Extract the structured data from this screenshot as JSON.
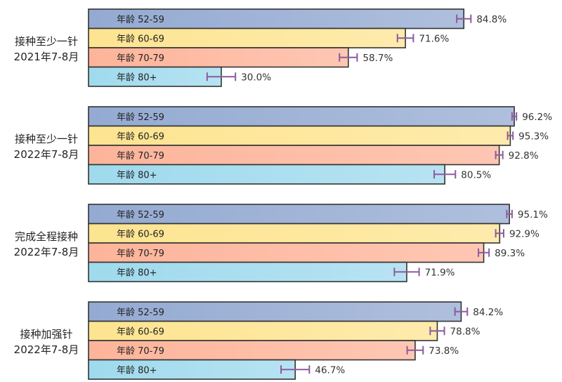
{
  "colors": {
    "series": [
      "#94aad2",
      "#fde490",
      "#fdb49a",
      "#9fdaed"
    ],
    "error_bar": "#8e5a9e",
    "bar_border": "#333333"
  },
  "chart_data": {
    "type": "bar",
    "orientation": "horizontal",
    "xlim": [
      0,
      100
    ],
    "series_labels": [
      "年龄 52-59",
      "年龄 60-69",
      "年龄 70-79",
      "年龄 80+"
    ],
    "groups": [
      {
        "label_lines": [
          "接种至少一针",
          "2021年7-8月"
        ],
        "values": [
          84.8,
          71.6,
          58.7,
          30.0
        ],
        "value_labels": [
          "84.8%",
          "71.6%",
          "58.7%",
          "30.0%"
        ],
        "errors": [
          1.6,
          1.8,
          2.0,
          3.2
        ]
      },
      {
        "label_lines": [
          "接种至少一针",
          "2022年7-8月"
        ],
        "values": [
          96.2,
          95.3,
          92.8,
          80.5
        ],
        "value_labels": [
          "96.2%",
          "95.3%",
          "92.8%",
          "80.5%"
        ],
        "errors": [
          0.5,
          0.6,
          0.8,
          2.4
        ]
      },
      {
        "label_lines": [
          "完成全程接种",
          "2022年7-8月"
        ],
        "values": [
          95.1,
          92.9,
          89.3,
          71.9
        ],
        "value_labels": [
          "95.1%",
          "92.9%",
          "89.3%",
          "71.9%"
        ],
        "errors": [
          0.6,
          0.9,
          1.2,
          2.8
        ]
      },
      {
        "label_lines": [
          "接种加强针",
          "2022年7-8月"
        ],
        "values": [
          84.2,
          78.8,
          73.8,
          46.7
        ],
        "value_labels": [
          "84.2%",
          "78.8%",
          "73.8%",
          "46.7%"
        ],
        "errors": [
          1.4,
          1.6,
          1.8,
          3.2
        ]
      }
    ]
  }
}
